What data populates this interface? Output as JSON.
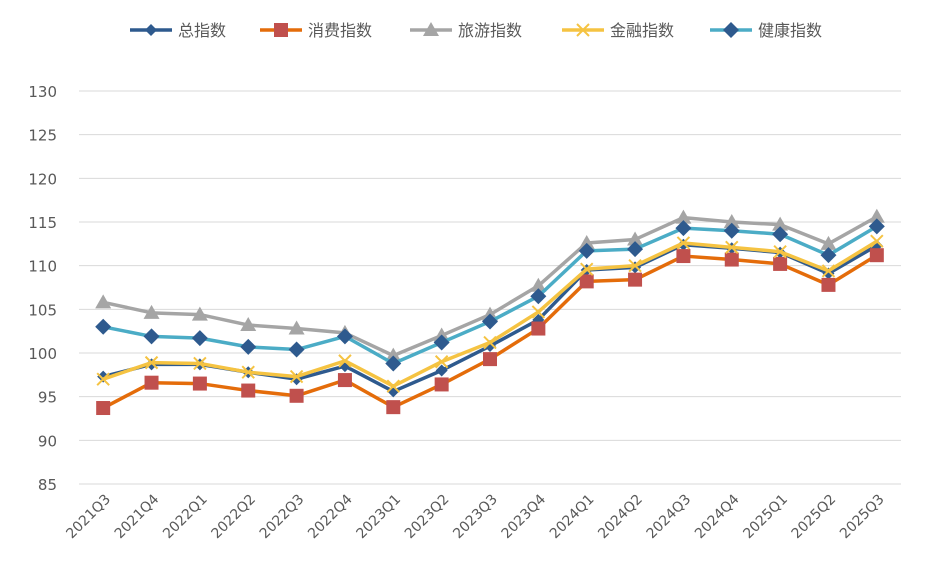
{
  "chart_data": {
    "type": "line",
    "title": "",
    "xlabel": "",
    "ylabel": "",
    "ylim": [
      85,
      130
    ],
    "yticks": [
      85,
      90,
      95,
      100,
      105,
      110,
      115,
      120,
      125,
      130
    ],
    "grid": true,
    "legend_position": "top",
    "categories": [
      "2021Q3",
      "2021Q4",
      "2022Q1",
      "2022Q2",
      "2022Q3",
      "2022Q4",
      "2023Q1",
      "2023Q2",
      "2023Q3",
      "2023Q4",
      "2024Q1",
      "2024Q2",
      "2024Q3",
      "2024Q4",
      "2025Q1",
      "2025Q2",
      "2025Q3"
    ],
    "series": [
      {
        "name": "总指数",
        "color": "#2E5A8E",
        "marker": "diamond-small",
        "markerColor": "#2E5A8E",
        "values": [
          97.3,
          98.7,
          98.7,
          97.8,
          97.0,
          98.5,
          95.6,
          98.0,
          100.8,
          103.8,
          109.5,
          109.8,
          112.4,
          112.0,
          111.5,
          109.1,
          112.3
        ]
      },
      {
        "name": "消费指数",
        "color": "#E46C0A",
        "marker": "square",
        "markerColor": "#C0504D",
        "values": [
          93.7,
          96.6,
          96.5,
          95.7,
          95.1,
          96.9,
          93.8,
          96.4,
          99.3,
          102.8,
          108.2,
          108.4,
          111.1,
          110.7,
          110.2,
          107.8,
          111.2
        ]
      },
      {
        "name": "旅游指数",
        "color": "#A5A5A5",
        "marker": "triangle",
        "markerColor": "#A5A5A5",
        "values": [
          105.8,
          104.6,
          104.4,
          103.2,
          102.8,
          102.3,
          99.7,
          102.0,
          104.4,
          107.7,
          112.6,
          113.0,
          115.5,
          115.0,
          114.7,
          112.5,
          115.6
        ]
      },
      {
        "name": "金融指数",
        "color": "#F5C342",
        "marker": "x",
        "markerColor": "#F5C342",
        "values": [
          97.0,
          98.9,
          98.8,
          97.8,
          97.3,
          99.1,
          96.2,
          99.0,
          101.2,
          104.7,
          109.6,
          110.0,
          112.6,
          112.1,
          111.6,
          109.4,
          112.8
        ]
      },
      {
        "name": "健康指数",
        "color": "#4BACC6",
        "marker": "diamond",
        "markerColor": "#2E5A8E",
        "values": [
          103.0,
          101.9,
          101.7,
          100.7,
          100.4,
          101.9,
          98.8,
          101.2,
          103.6,
          106.5,
          111.7,
          111.9,
          114.3,
          114.0,
          113.6,
          111.2,
          114.5
        ]
      }
    ]
  }
}
